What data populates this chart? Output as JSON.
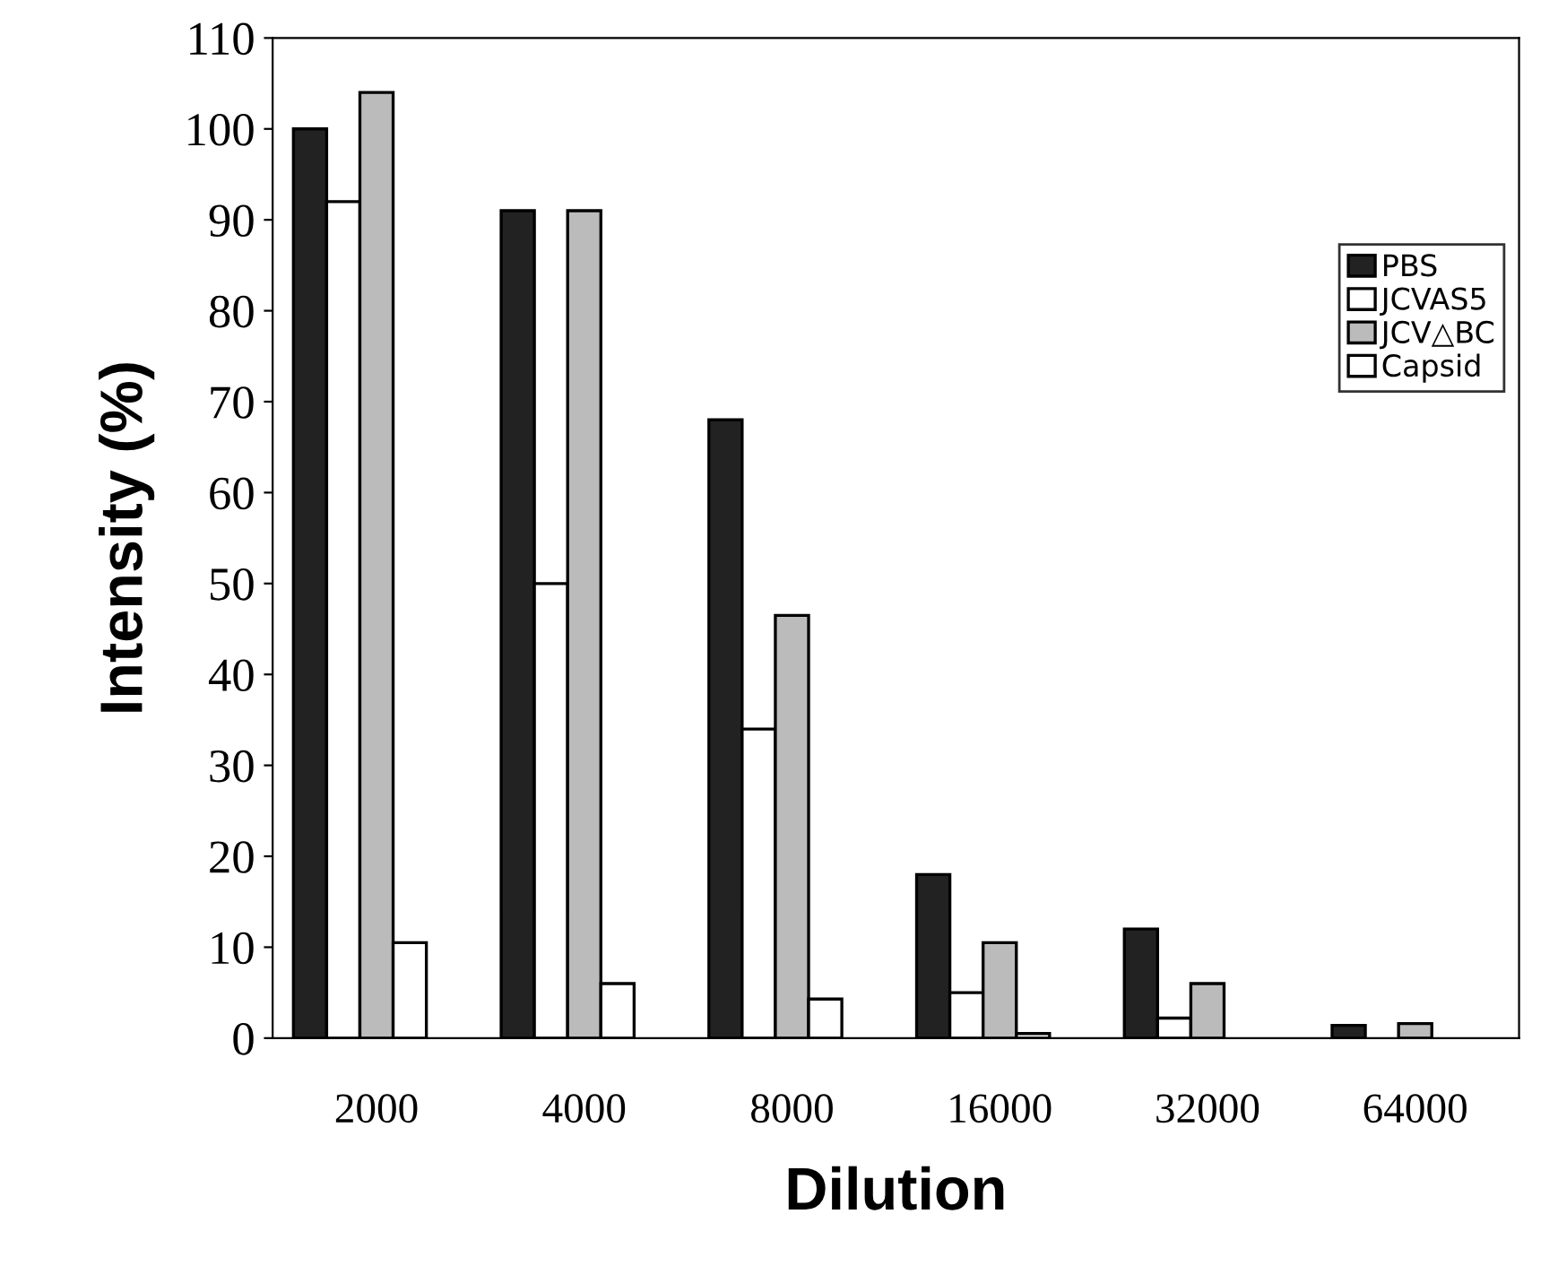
{
  "chart_data": {
    "type": "bar",
    "xlabel": "Dilution",
    "ylabel": "Intensity (%)",
    "categories": [
      "2000",
      "4000",
      "8000",
      "16000",
      "32000",
      "64000"
    ],
    "series": [
      {
        "name": "PBS",
        "color": "#222222",
        "values": [
          100,
          91,
          68,
          18,
          12,
          1.4
        ]
      },
      {
        "name": "JCVAS5",
        "color": "#ffffff",
        "values": [
          92,
          50,
          34,
          5,
          2.2,
          0
        ]
      },
      {
        "name": "JCV△BC",
        "color": "#bbbbbb",
        "values": [
          104,
          91,
          46.5,
          10.5,
          6,
          1.6
        ]
      },
      {
        "name": "Capsid",
        "color": "#ffffff",
        "values": [
          10.5,
          6,
          4.3,
          0.5,
          0,
          0
        ]
      }
    ],
    "ylim": [
      0,
      110
    ],
    "yticks": [
      0,
      10,
      20,
      30,
      40,
      50,
      60,
      70,
      80,
      90,
      100,
      110
    ],
    "grid": false,
    "legend": "right"
  }
}
